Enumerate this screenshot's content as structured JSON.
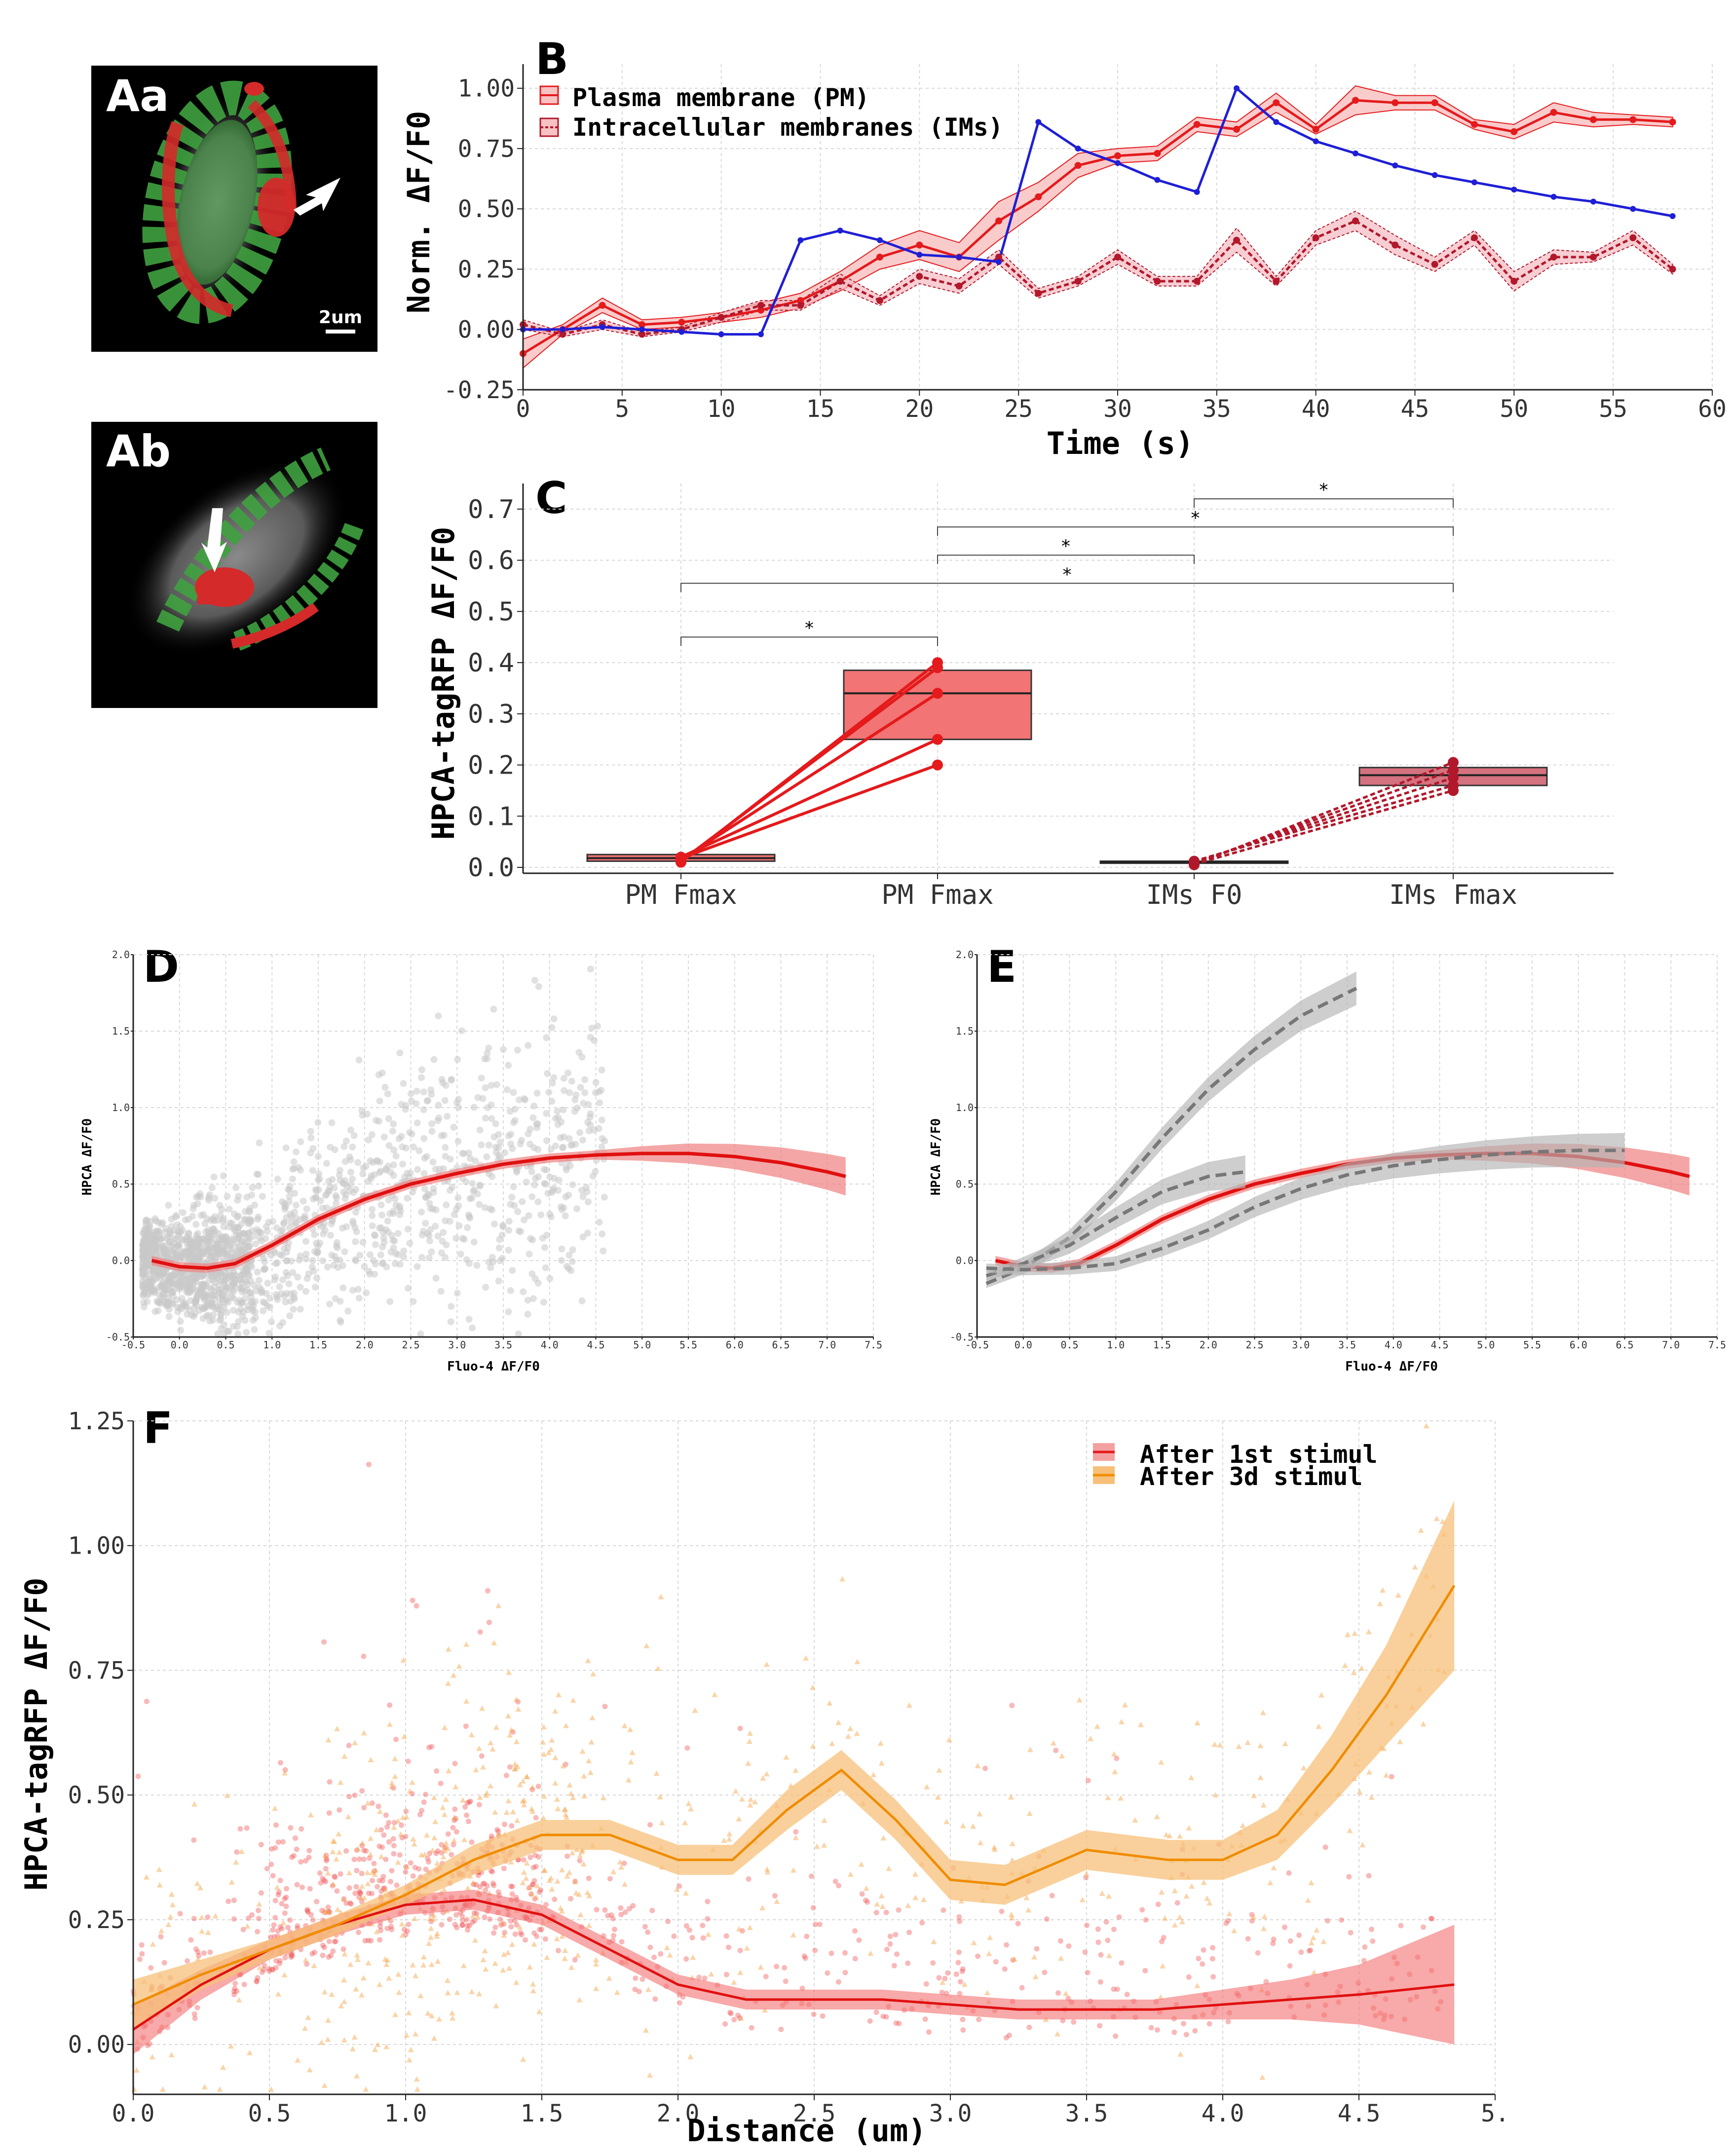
{
  "colors": {
    "pm": "#e41a1c",
    "ims": "#b2182b",
    "fluo": "#1f1fd6",
    "grey_points": "#c8c8c8",
    "band_red": "#f08080",
    "band_grey": "#b4b4b4",
    "orange": "#f08c00",
    "band_orange": "#f7c07a",
    "box_pm": "#f27474",
    "box_ims": "#d4727f",
    "green_mask": "#3fa23f",
    "red_mask": "#d42a2a"
  },
  "panels": {
    "Aa": {
      "label": "Aa",
      "scalebar": "2um"
    },
    "Ab": {
      "label": "Ab"
    }
  },
  "chart_data": [
    {
      "panel": "B",
      "type": "line",
      "xlabel": "Time (s)",
      "ylabel": "Norm. ΔF/F0",
      "xlim": [
        0,
        60
      ],
      "ylim": [
        -0.25,
        1.1
      ],
      "xticks": [
        "0",
        "5",
        "10",
        "15",
        "20",
        "25",
        "30",
        "35",
        "40",
        "45",
        "50",
        "55",
        "60"
      ],
      "yticks": [
        "-0.25",
        "0.00",
        "0.25",
        "0.50",
        "0.75",
        "1.00"
      ],
      "grid": true,
      "legend_position": "top-left",
      "x": [
        0,
        2,
        4,
        6,
        8,
        10,
        12,
        14,
        16,
        18,
        20,
        22,
        24,
        26,
        28,
        30,
        32,
        34,
        36,
        38,
        40,
        42,
        44,
        46,
        48,
        50,
        52,
        54,
        56,
        58
      ],
      "series": [
        {
          "name": "Plasma membrane (PM)",
          "style": "solid",
          "values": [
            -0.1,
            0.0,
            0.1,
            0.02,
            0.03,
            0.05,
            0.08,
            0.12,
            0.2,
            0.3,
            0.35,
            0.3,
            0.45,
            0.55,
            0.68,
            0.72,
            0.73,
            0.85,
            0.83,
            0.94,
            0.83,
            0.95,
            0.94,
            0.94,
            0.85,
            0.82,
            0.9,
            0.87,
            0.87,
            0.86
          ],
          "band": [
            0.06,
            0.02,
            0.03,
            0.02,
            0.02,
            0.02,
            0.03,
            0.03,
            0.04,
            0.05,
            0.06,
            0.06,
            0.08,
            0.06,
            0.05,
            0.03,
            0.03,
            0.03,
            0.03,
            0.04,
            0.02,
            0.06,
            0.03,
            0.03,
            0.02,
            0.03,
            0.04,
            0.03,
            0.02,
            0.02
          ]
        },
        {
          "name": "Intracellular membranes (IMs)",
          "style": "dashed",
          "values": [
            0.02,
            -0.02,
            0.02,
            -0.02,
            0.0,
            0.05,
            0.1,
            0.1,
            0.2,
            0.12,
            0.22,
            0.18,
            0.3,
            0.15,
            0.2,
            0.3,
            0.2,
            0.2,
            0.37,
            0.2,
            0.38,
            0.45,
            0.35,
            0.27,
            0.38,
            0.2,
            0.3,
            0.3,
            0.38,
            0.25
          ],
          "band": [
            0.02,
            0.01,
            0.02,
            0.01,
            0.01,
            0.02,
            0.02,
            0.02,
            0.03,
            0.02,
            0.03,
            0.03,
            0.03,
            0.02,
            0.02,
            0.03,
            0.02,
            0.02,
            0.05,
            0.02,
            0.03,
            0.04,
            0.04,
            0.03,
            0.03,
            0.04,
            0.03,
            0.02,
            0.03,
            0.02
          ]
        },
        {
          "name": "",
          "style": "blue",
          "values": [
            0.0,
            0.0,
            0.01,
            0.0,
            -0.01,
            -0.02,
            -0.02,
            0.37,
            0.41,
            0.37,
            0.31,
            0.3,
            0.28,
            0.86,
            0.75,
            0.69,
            0.62,
            0.57,
            1.0,
            0.86,
            0.78,
            0.73,
            0.68,
            0.64,
            0.61,
            0.58,
            0.55,
            0.53,
            0.5,
            0.47
          ]
        }
      ]
    },
    {
      "panel": "C",
      "type": "box",
      "ylabel": "HPCA-tagRFP ΔF/F0",
      "categories": [
        "PM Fmax",
        "PM Fmax",
        "IMs F0",
        "IMs Fmax"
      ],
      "ylim": [
        0,
        0.75
      ],
      "yticks": [
        "0.0",
        "0.1",
        "0.2",
        "0.3",
        "0.4",
        "0.5",
        "0.6",
        "0.7"
      ],
      "boxes": [
        {
          "q1": 0.012,
          "median": 0.018,
          "q3": 0.025
        },
        {
          "q1": 0.25,
          "median": 0.34,
          "q3": 0.385
        },
        {
          "q1": 0.008,
          "median": 0.01,
          "q3": 0.012
        },
        {
          "q1": 0.16,
          "median": 0.18,
          "q3": 0.195
        }
      ],
      "paired_points": {
        "pm_start": [
          0.01,
          0.012,
          0.015,
          0.02,
          0.018
        ],
        "pm_end": [
          0.4,
          0.39,
          0.34,
          0.25,
          0.2
        ],
        "ims_start": [
          0.005,
          0.008,
          0.01,
          0.012,
          0.006
        ],
        "ims_end": [
          0.205,
          0.19,
          0.175,
          0.16,
          0.15
        ]
      },
      "significance": [
        {
          "from": 1,
          "to": 2,
          "y": 0.45,
          "label": "*"
        },
        {
          "from": 1,
          "to": 4,
          "y": 0.555,
          "label": "*"
        },
        {
          "from": 2,
          "to": 3,
          "y": 0.61,
          "label": "*"
        },
        {
          "from": 2,
          "to": 4,
          "y": 0.665,
          "label": "*"
        },
        {
          "from": 3,
          "to": 4,
          "y": 0.72,
          "label": "*"
        }
      ]
    },
    {
      "panel": "D",
      "type": "scatter",
      "xlabel": "Fluo-4 ΔF/F0",
      "ylabel": "HPCA ΔF/F0",
      "xlim": [
        -0.5,
        7.5
      ],
      "ylim": [
        -0.5,
        2.0
      ],
      "xticks": [
        "-0.5",
        "0.0",
        "0.5",
        "1.0",
        "1.5",
        "2.0",
        "2.5",
        "3.0",
        "3.5",
        "4.0",
        "4.5",
        "5.0",
        "5.5",
        "6.0",
        "6.5",
        "7.0",
        "7.5"
      ],
      "yticks": [
        "-0.5",
        "0.0",
        "0.5",
        "1.0",
        "1.5",
        "2.0"
      ],
      "fit": {
        "x": [
          -0.3,
          0.0,
          0.3,
          0.6,
          1.0,
          1.5,
          2.0,
          2.5,
          3.0,
          3.5,
          4.0,
          4.5,
          5.0,
          5.5,
          6.0,
          6.5,
          7.0,
          7.2
        ],
        "y": [
          0.0,
          -0.04,
          -0.05,
          -0.02,
          0.1,
          0.27,
          0.4,
          0.5,
          0.57,
          0.63,
          0.67,
          0.69,
          0.7,
          0.7,
          0.68,
          0.64,
          0.58,
          0.55
        ]
      }
    },
    {
      "panel": "E",
      "type": "line",
      "xlabel": "Fluo-4 ΔF/F0",
      "ylabel": "HPCA ΔF/F0",
      "xlim": [
        -0.5,
        7.5
      ],
      "ylim": [
        -0.5,
        2.0
      ],
      "xticks": [
        "-0.5",
        "0.0",
        "0.5",
        "1.0",
        "1.5",
        "2.0",
        "2.5",
        "3.0",
        "3.5",
        "4.0",
        "4.5",
        "5.0",
        "5.5",
        "6.0",
        "6.5",
        "7.0",
        "7.5"
      ],
      "yticks": [
        "-0.5",
        "0.0",
        "0.5",
        "1.0",
        "1.5",
        "2.0"
      ],
      "series": [
        {
          "style": "red",
          "x": [
            -0.3,
            0.0,
            0.3,
            0.6,
            1.0,
            1.5,
            2.0,
            2.5,
            3.0,
            3.5,
            4.0,
            4.5,
            5.0,
            5.5,
            6.0,
            6.5,
            7.0,
            7.2
          ],
          "y": [
            0.0,
            -0.04,
            -0.05,
            -0.02,
            0.1,
            0.27,
            0.4,
            0.5,
            0.57,
            0.63,
            0.67,
            0.69,
            0.7,
            0.7,
            0.68,
            0.64,
            0.58,
            0.55
          ]
        },
        {
          "style": "grey-dashed",
          "x": [
            -0.4,
            0.0,
            0.5,
            1.0,
            1.5,
            2.0,
            2.5,
            3.0,
            3.6
          ],
          "y": [
            -0.15,
            -0.05,
            0.15,
            0.45,
            0.8,
            1.12,
            1.38,
            1.6,
            1.78
          ]
        },
        {
          "style": "grey-dashed",
          "x": [
            -0.4,
            0.0,
            0.5,
            1.0,
            1.5,
            2.0,
            2.4
          ],
          "y": [
            -0.1,
            -0.02,
            0.1,
            0.28,
            0.45,
            0.55,
            0.58
          ]
        },
        {
          "style": "grey-dashed",
          "x": [
            -0.4,
            0.0,
            0.5,
            1.0,
            1.5,
            2.0,
            2.5,
            3.0,
            3.5,
            4.0,
            4.5,
            5.0,
            5.5,
            6.0,
            6.5
          ],
          "y": [
            -0.05,
            -0.06,
            -0.05,
            -0.02,
            0.08,
            0.2,
            0.35,
            0.47,
            0.56,
            0.62,
            0.66,
            0.69,
            0.71,
            0.72,
            0.72
          ]
        }
      ]
    },
    {
      "panel": "F",
      "type": "scatter",
      "xlabel": "Distance (um)",
      "ylabel": "HPCA-tagRFP ΔF/F0",
      "xlim": [
        0,
        5.0
      ],
      "ylim": [
        -0.1,
        1.25
      ],
      "xticks": [
        "0.0",
        "0.5",
        "1.0",
        "1.5",
        "2.0",
        "2.5",
        "3.0",
        "3.5",
        "4.0",
        "4.5",
        "5."
      ],
      "yticks": [
        "0.00",
        "0.25",
        "0.50",
        "0.75",
        "1.00",
        "1.25"
      ],
      "legend_position": "top-right",
      "series": [
        {
          "name": "After 1st stimul",
          "x": [
            0.0,
            0.25,
            0.5,
            0.75,
            1.0,
            1.25,
            1.5,
            1.75,
            2.0,
            2.25,
            2.5,
            2.75,
            3.0,
            3.25,
            3.5,
            3.75,
            4.0,
            4.25,
            4.5,
            4.85
          ],
          "y": [
            0.03,
            0.12,
            0.19,
            0.24,
            0.28,
            0.29,
            0.26,
            0.19,
            0.12,
            0.09,
            0.09,
            0.09,
            0.08,
            0.07,
            0.07,
            0.07,
            0.08,
            0.09,
            0.1,
            0.12
          ],
          "band": [
            0.05,
            0.03,
            0.02,
            0.02,
            0.02,
            0.02,
            0.02,
            0.02,
            0.02,
            0.02,
            0.02,
            0.02,
            0.02,
            0.02,
            0.02,
            0.02,
            0.03,
            0.04,
            0.06,
            0.12
          ]
        },
        {
          "name": "After 3d stimul",
          "x": [
            0.0,
            0.25,
            0.5,
            0.75,
            1.0,
            1.25,
            1.5,
            1.75,
            2.0,
            2.2,
            2.4,
            2.6,
            2.8,
            3.0,
            3.2,
            3.5,
            3.8,
            4.0,
            4.2,
            4.4,
            4.6,
            4.85
          ],
          "y": [
            0.08,
            0.14,
            0.19,
            0.24,
            0.3,
            0.37,
            0.42,
            0.42,
            0.37,
            0.37,
            0.47,
            0.55,
            0.45,
            0.33,
            0.32,
            0.39,
            0.37,
            0.37,
            0.42,
            0.55,
            0.7,
            0.92
          ],
          "band": [
            0.05,
            0.03,
            0.02,
            0.02,
            0.02,
            0.03,
            0.03,
            0.03,
            0.03,
            0.03,
            0.04,
            0.04,
            0.04,
            0.04,
            0.04,
            0.04,
            0.04,
            0.04,
            0.05,
            0.07,
            0.1,
            0.17
          ]
        }
      ]
    }
  ]
}
